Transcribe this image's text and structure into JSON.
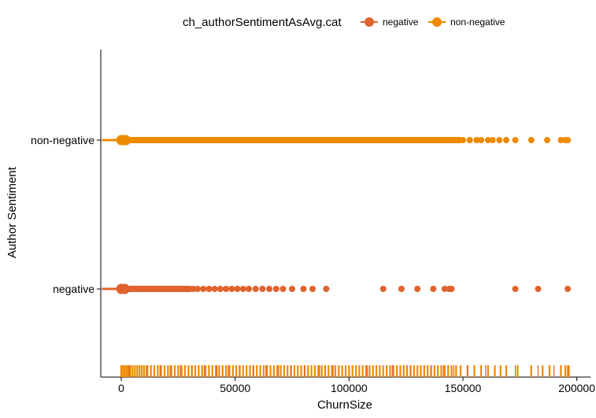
{
  "chart_data": {
    "type": "scatter",
    "title": "",
    "xlabel": "ChurnSize",
    "ylabel": "Author Sentiment",
    "xlim": [
      -9000,
      206000
    ],
    "x_ticks": [
      0,
      50000,
      100000,
      150000,
      200000
    ],
    "x_tick_labels": [
      "0",
      "50000",
      "100000",
      "150000",
      "200000"
    ],
    "categories": [
      "negative",
      "non-negative"
    ],
    "grid": false,
    "legend": {
      "title": "ch_authorSentimentAsAvg.cat",
      "position": "top",
      "entries": [
        {
          "label": "negative",
          "color": "#E0632E"
        },
        {
          "label": "non-negative",
          "color": "#EE8A00"
        }
      ]
    },
    "series": [
      {
        "name": "negative",
        "category": "negative",
        "color": "#E0632E",
        "values": [
          0,
          1500,
          3000,
          4500,
          6000,
          7500,
          9000,
          10500,
          12000,
          13500,
          15000,
          16500,
          18000,
          19500,
          21000,
          22500,
          24000,
          25500,
          27000,
          28500,
          30000,
          31500,
          33500,
          36000,
          38500,
          41000,
          43500,
          46000,
          48500,
          51000,
          53500,
          56000,
          59000,
          62000,
          65000,
          68000,
          71000,
          75000,
          80000,
          84000,
          90000,
          115000,
          123000,
          130000,
          137000,
          142000,
          144000,
          145000,
          173000,
          183000,
          196000
        ],
        "rug_values": [
          3500,
          11000,
          17000,
          21500,
          26000,
          31000,
          36500,
          42000,
          47000,
          52000,
          58000,
          63500,
          69000,
          74500,
          80500,
          87000,
          93000,
          108000,
          119000,
          127000,
          136000,
          141500,
          146000,
          152000,
          160000,
          173000,
          183000,
          190000,
          196000
        ]
      },
      {
        "name": "non-negative",
        "category": "non-negative",
        "color": "#EE8A00",
        "values": [
          0,
          500,
          1000,
          2000,
          4000,
          6000,
          8000,
          10000,
          12000,
          14000,
          16000,
          18000,
          20000,
          22000,
          24000,
          26000,
          28000,
          30000,
          32000,
          34000,
          36000,
          38000,
          40000,
          42000,
          44000,
          46000,
          48000,
          50000,
          52000,
          54000,
          56000,
          58000,
          60000,
          62000,
          64000,
          66000,
          68000,
          70000,
          72000,
          74000,
          76000,
          78000,
          80000,
          82000,
          84000,
          86000,
          88000,
          90000,
          92000,
          94000,
          96000,
          98000,
          100000,
          102000,
          104000,
          106000,
          108000,
          110000,
          112000,
          114000,
          116000,
          118000,
          120000,
          122000,
          124000,
          126000,
          128000,
          130000,
          132000,
          134000,
          136000,
          138000,
          140000,
          142000,
          144000,
          146000,
          148000,
          150000,
          153000,
          156000,
          158000,
          161000,
          163000,
          166000,
          169000,
          173000,
          180000,
          187000,
          193000,
          195000,
          196000
        ],
        "rug_values": [
          0,
          800,
          1600,
          2400,
          3200,
          4000,
          5000,
          6000,
          7000,
          8000,
          9000,
          10000,
          11500,
          13000,
          14500,
          16000,
          17500,
          19000,
          20500,
          22000,
          23500,
          25000,
          26500,
          28000,
          29500,
          31000,
          32500,
          34000,
          35500,
          37000,
          38500,
          40000,
          41500,
          43000,
          44500,
          46000,
          47500,
          49000,
          50500,
          52000,
          53500,
          55000,
          56500,
          58000,
          59500,
          61000,
          62500,
          64000,
          65500,
          67000,
          68500,
          70000,
          71500,
          73000,
          74500,
          76000,
          77500,
          79000,
          80500,
          82000,
          83500,
          85000,
          86500,
          88000,
          89500,
          91000,
          92500,
          94000,
          95500,
          97000,
          98500,
          100000,
          101500,
          103000,
          104500,
          106000,
          107500,
          109000,
          110500,
          112000,
          113500,
          115000,
          116500,
          118000,
          119500,
          121000,
          122500,
          124000,
          125500,
          127000,
          128500,
          130000,
          131500,
          133000,
          134500,
          136000,
          137500,
          139000,
          140500,
          142000,
          143500,
          145000,
          147000,
          149000,
          152000,
          155000,
          158000,
          161000,
          164000,
          166500,
          169000,
          174000,
          180000,
          185000,
          188000,
          193000,
          195000,
          196500
        ]
      }
    ]
  }
}
